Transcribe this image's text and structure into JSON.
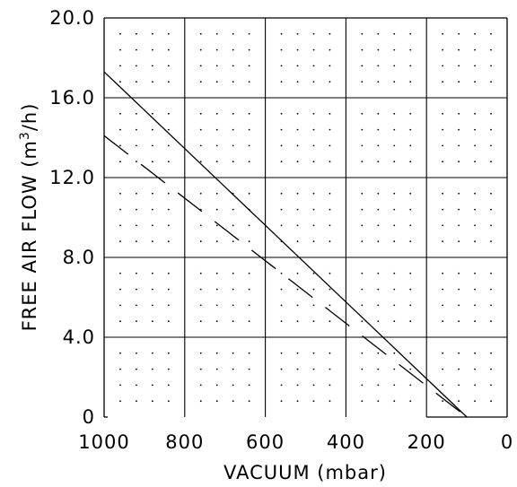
{
  "chart_data": {
    "type": "line",
    "xlabel": "VACUUM (mbar)",
    "ylabel": "FREE AIR FLOW (m³/h)",
    "ylabel_parts": {
      "before": "FREE AIR FLOW (m",
      "sup": "3",
      "after": "/h)"
    },
    "xlim": [
      1000,
      0
    ],
    "ylim": [
      0,
      20
    ],
    "grid": true,
    "dot_grid": true,
    "x_ticks": [
      1000,
      800,
      600,
      400,
      200,
      0
    ],
    "x_tick_labels": [
      "1000",
      "800",
      "600",
      "400",
      "200",
      "0"
    ],
    "y_ticks": [
      0,
      4,
      8,
      12,
      16,
      20
    ],
    "y_tick_labels": [
      "0",
      "4.0",
      "8.0",
      "12.0",
      "16.0",
      "20.0"
    ],
    "series": [
      {
        "style": "solid",
        "color": "#000000",
        "x": [
          1000,
          100
        ],
        "y": [
          17.3,
          0
        ]
      },
      {
        "style": "dashed",
        "color": "#000000",
        "x": [
          1000,
          100
        ],
        "y": [
          14.1,
          0
        ]
      }
    ],
    "baseline": {
      "x": [
        200,
        0
      ],
      "y": [
        0,
        0
      ]
    }
  }
}
